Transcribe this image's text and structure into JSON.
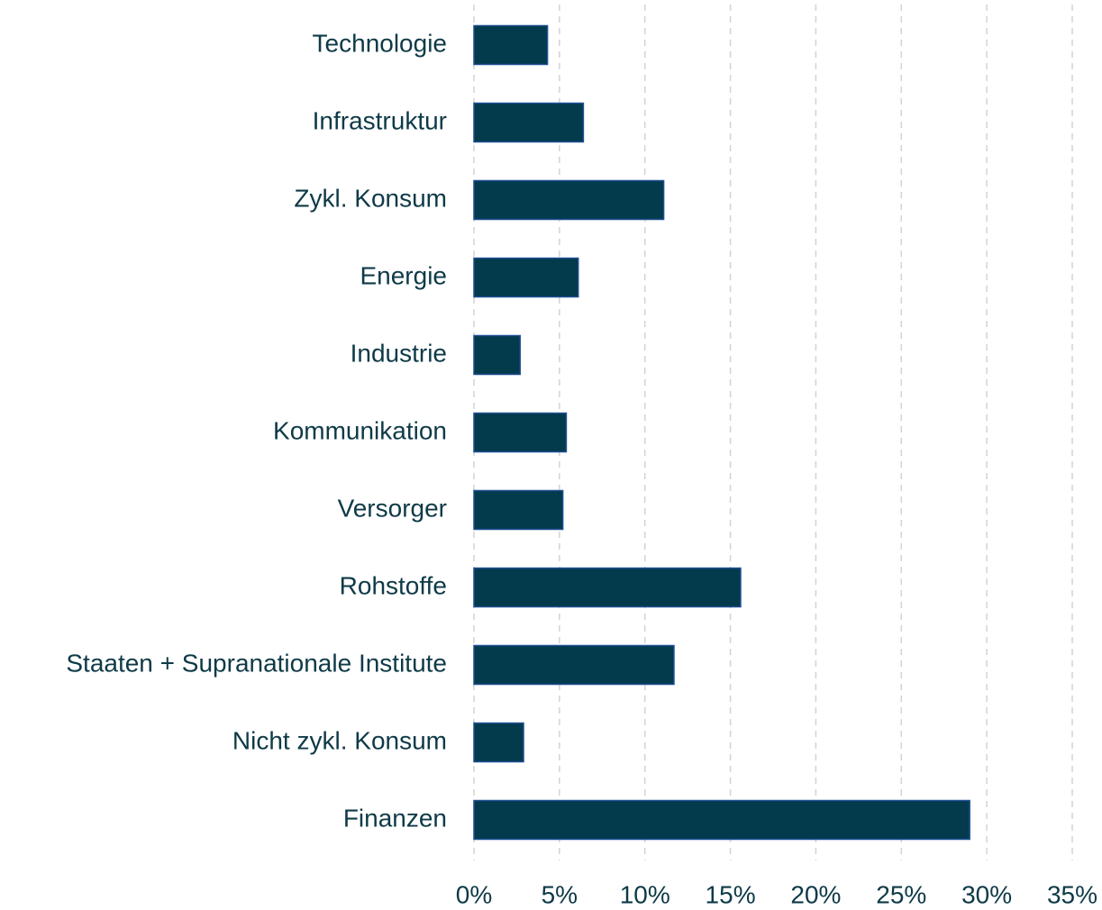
{
  "chart_data": {
    "type": "barh",
    "categories": [
      "Technologie",
      "Infrastruktur",
      "Zykl. Konsum",
      "Energie",
      "Industrie",
      "Kommunikation",
      "Versorger",
      "Rohstoffe",
      "Staaten + Supranationale Institute",
      "Nicht zykl. Konsum",
      "Finanzen"
    ],
    "values": [
      4.3,
      6.4,
      11.1,
      6.1,
      2.7,
      5.4,
      5.2,
      15.6,
      11.7,
      2.9,
      29.0
    ],
    "color": "#033a4c",
    "xlim": [
      0,
      35
    ],
    "xticks": [
      {
        "value": 0,
        "label": "0%"
      },
      {
        "value": 5,
        "label": "5%"
      },
      {
        "value": 10,
        "label": "10%"
      },
      {
        "value": 15,
        "label": "15%"
      },
      {
        "value": 20,
        "label": "20%"
      },
      {
        "value": 25,
        "label": "25%"
      },
      {
        "value": 30,
        "label": "30%"
      },
      {
        "value": 35,
        "label": "35%"
      }
    ],
    "grid": true
  }
}
